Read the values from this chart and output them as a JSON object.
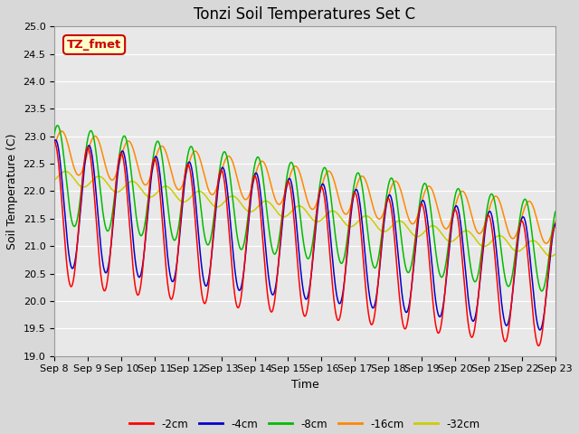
{
  "title": "Tonzi Soil Temperatures Set C",
  "xlabel": "Time",
  "ylabel": "Soil Temperature (C)",
  "ylim": [
    19.0,
    25.0
  ],
  "yticks": [
    19.0,
    19.5,
    20.0,
    20.5,
    21.0,
    21.5,
    22.0,
    22.5,
    23.0,
    23.5,
    24.0,
    24.5,
    25.0
  ],
  "xtick_labels": [
    "Sep 8",
    "Sep 9",
    "Sep 10",
    "Sep 11",
    "Sep 12",
    "Sep 13",
    "Sep 14",
    "Sep 15",
    "Sep 16",
    "Sep 17",
    "Sep 18",
    "Sep 19",
    "Sep 20",
    "Sep 21",
    "Sep 22",
    "Sep 23"
  ],
  "annotation_text": "TZ_fmet",
  "annotation_color": "#cc0000",
  "annotation_bg": "#ffffcc",
  "colors": {
    "-2cm": "#ff0000",
    "-4cm": "#0000cc",
    "-8cm": "#00bb00",
    "-16cm": "#ff8800",
    "-32cm": "#cccc00"
  },
  "legend_labels": [
    "-2cm",
    "-4cm",
    "-8cm",
    "-16cm",
    "-32cm"
  ],
  "plot_bg": "#e8e8e8",
  "title_fontsize": 12,
  "axis_fontsize": 9,
  "tick_fontsize": 8
}
